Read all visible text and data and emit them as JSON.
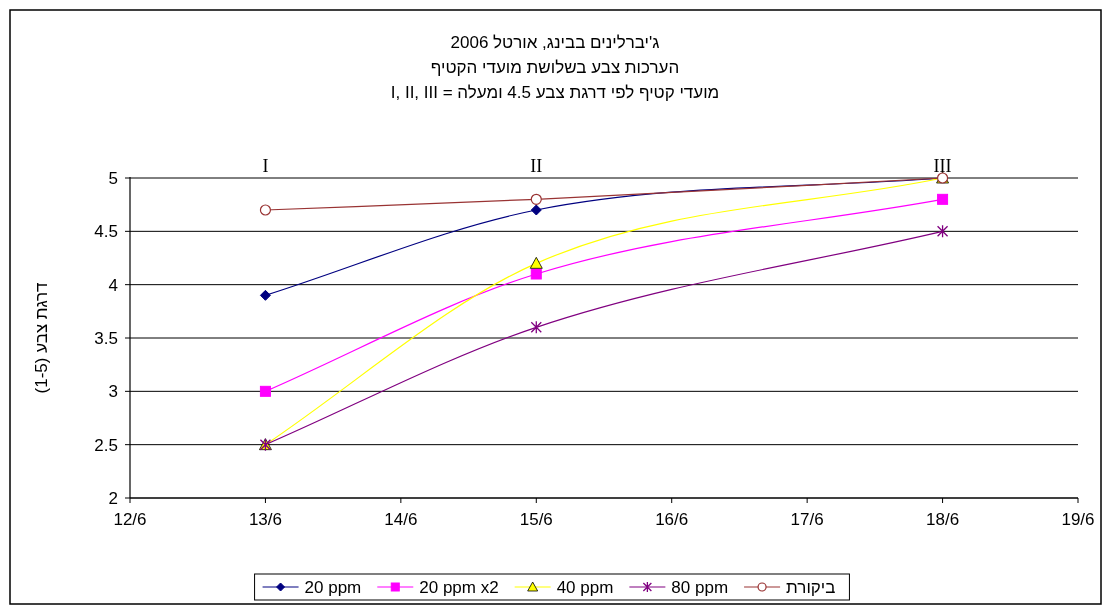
{
  "chart_data": {
    "type": "line",
    "title": "ג'יברלינים בבינג, אורטל 2006",
    "subtitle": "הערכות צבע בשלושת מועדי הקטיף\nI, II, III = מועדי קטיף לפי דרגת צבע 4.5 ומעלה",
    "ylabel": "דרגת צבע (1-5)",
    "x": [
      "--06-13",
      "--06-15",
      "--06-18"
    ],
    "xlim": [
      "--06-12",
      "--06-19"
    ],
    "xticks": [
      {
        "value": "--06-12",
        "label": "12/6"
      },
      {
        "value": "--06-13",
        "label": "13/6"
      },
      {
        "value": "--06-14",
        "label": "14/6"
      },
      {
        "value": "--06-15",
        "label": "15/6"
      },
      {
        "value": "--06-16",
        "label": "16/6"
      },
      {
        "value": "--06-17",
        "label": "17/6"
      },
      {
        "value": "--06-18",
        "label": "18/6"
      },
      {
        "value": "--06-19",
        "label": "19/6"
      }
    ],
    "ylim": [
      2,
      5
    ],
    "yticks": [
      2,
      2.5,
      3,
      3.5,
      4,
      4.5,
      5
    ],
    "grid": "y",
    "legend": "bottom",
    "series": [
      {
        "name": "20 ppm",
        "color": "#000080",
        "marker": "diamond",
        "values": [
          3.9,
          4.7,
          5.0
        ]
      },
      {
        "name": "20 ppm x2",
        "color": "#ff00ff",
        "marker": "square",
        "values": [
          3.0,
          4.1,
          4.8
        ]
      },
      {
        "name": "40 ppm",
        "color": "#ffff00",
        "marker": "triangle",
        "values": [
          2.5,
          4.2,
          5.0
        ]
      },
      {
        "name": "80 ppm",
        "color": "#800080",
        "marker": "cross",
        "values": [
          2.5,
          3.6,
          4.5
        ]
      },
      {
        "name": "ביקורת",
        "color": "#993333",
        "marker": "circle",
        "values": [
          4.7,
          4.8,
          5.0
        ]
      }
    ],
    "annotations": [
      "I",
      "II",
      "III"
    ]
  }
}
